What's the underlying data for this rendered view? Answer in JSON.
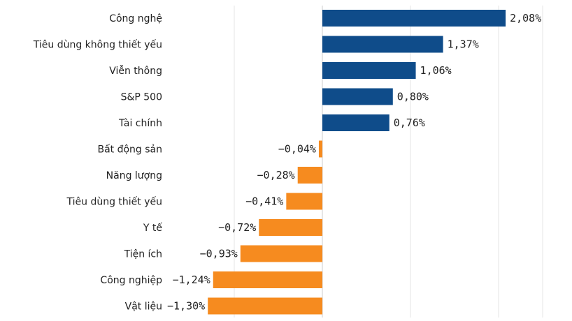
{
  "chart_data": {
    "type": "bar",
    "orientation": "horizontal",
    "categories": [
      "Công nghệ",
      "Tiêu dùng không thiết yếu",
      "Viễn thông",
      "S&P 500",
      "Tài chính",
      "Bất động sản",
      "Năng lượng",
      "Tiêu dùng thiết yếu",
      "Y tế",
      "Tiện ích",
      "Công nghiệp",
      "Vật liệu"
    ],
    "values": [
      2.08,
      1.37,
      1.06,
      0.8,
      0.76,
      -0.04,
      -0.28,
      -0.41,
      -0.72,
      -0.93,
      -1.24,
      -1.3
    ],
    "value_labels": [
      "2,08%",
      "1,37%",
      "1,06%",
      "0,80%",
      "0,76%",
      "−0,04%",
      "−0,28%",
      "−0,41%",
      "−0,72%",
      "−0,93%",
      "−1,24%",
      "−1,30%"
    ],
    "xlim": [
      -1.3,
      2.5
    ],
    "grid": "vertical gridlines",
    "colors": {
      "positive": "#0f4c8a",
      "negative": "#f68b1f",
      "gridline": "#e6e6e6",
      "zero_line": "#cccccc"
    },
    "title": "",
    "xlabel": "",
    "ylabel": ""
  }
}
